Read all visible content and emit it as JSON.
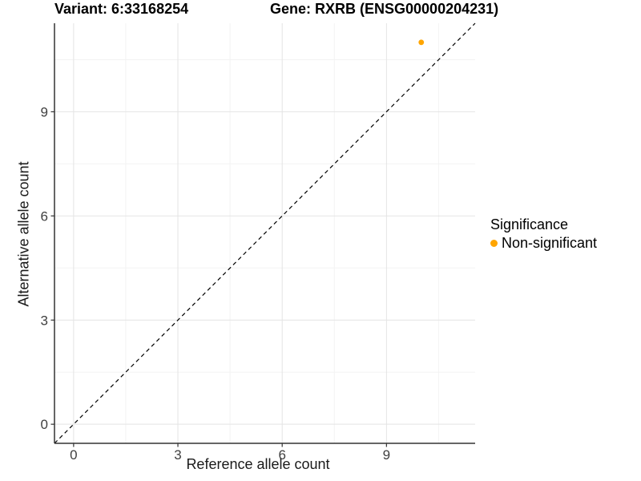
{
  "figure": {
    "title_left": "Variant: 6:33168254",
    "title_right": "Gene: RXRB (ENSG00000204231)"
  },
  "axes": {
    "x": {
      "label": "Reference allele count",
      "ticks": [
        0,
        3,
        6,
        9
      ]
    },
    "y": {
      "label": "Alternative allele count",
      "ticks": [
        0,
        3,
        6,
        9
      ]
    }
  },
  "legend": {
    "title": "Significance",
    "items": [
      {
        "label": "Non-significant",
        "color": "#FFA500"
      }
    ]
  },
  "colors": {
    "point": "#FFA500",
    "axis_line": "#333333",
    "tick_label": "#404040",
    "grid_major": "#E4E4E4",
    "grid_minor": "#F3F3F3",
    "reference_line": "#000000",
    "background": "#FFFFFF"
  },
  "chart_data": {
    "type": "scatter",
    "title": "Variant: 6:33168254 | Gene: RXRB (ENSG00000204231)",
    "xlabel": "Reference allele count",
    "ylabel": "Alternative allele count",
    "xlim": [
      -0.55,
      11.55
    ],
    "ylim": [
      -0.55,
      11.55
    ],
    "grid": {
      "major": [
        0,
        3,
        6,
        9
      ],
      "minor": [
        1.5,
        4.5,
        7.5,
        10.5
      ],
      "visible": true
    },
    "legend_position": "right",
    "reference_line": {
      "type": "identity",
      "slope": 1,
      "intercept": 0,
      "style": "dashed"
    },
    "series": [
      {
        "name": "Non-significant",
        "color": "#FFA500",
        "points": [
          {
            "x": 10,
            "y": 11
          }
        ]
      }
    ]
  }
}
